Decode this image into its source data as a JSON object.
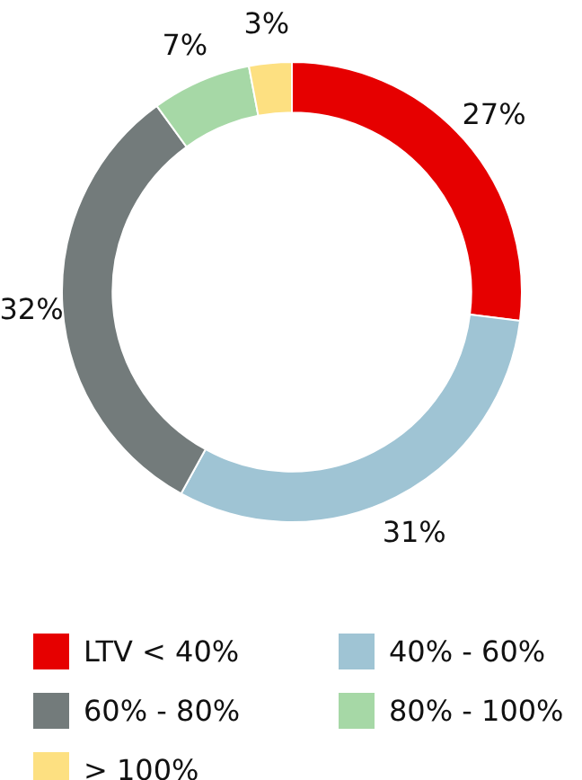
{
  "chart_data": {
    "type": "donut",
    "categories": [
      "LTV < 40%",
      "40% - 60%",
      "60% - 80%",
      "80% - 100%",
      "> 100%"
    ],
    "values": [
      27,
      31,
      32,
      7,
      3
    ],
    "colors": [
      "#e60000",
      "#9fc4d4",
      "#737b7b",
      "#a6d8a6",
      "#fde081"
    ],
    "value_labels": [
      "27%",
      "31%",
      "32%",
      "7%",
      "3%"
    ],
    "legend": "bottom"
  }
}
